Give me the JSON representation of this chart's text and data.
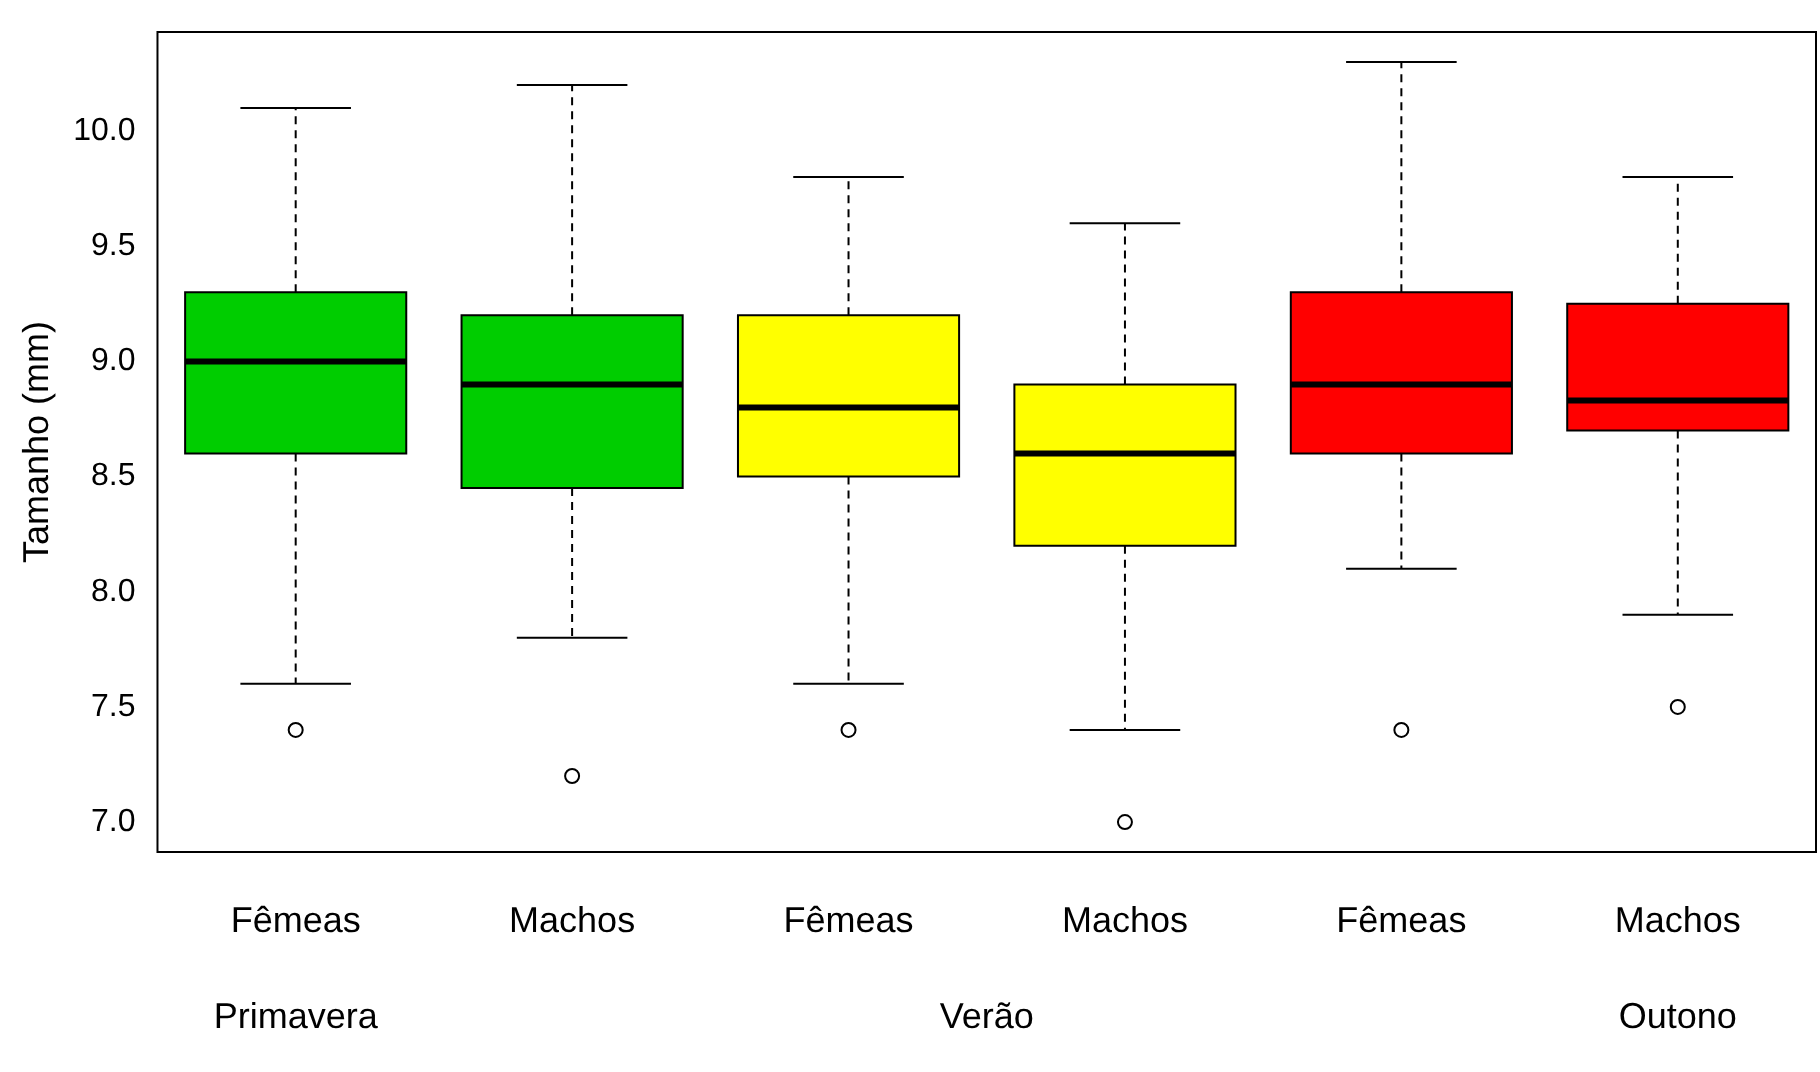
{
  "chart_data": {
    "type": "box",
    "ylabel": "Tamanho (mm)",
    "categories": [
      "Fêmeas",
      "Machos",
      "Fêmeas",
      "Machos",
      "Fêmeas",
      "Machos"
    ],
    "colors": [
      "#00cd00",
      "#00cd00",
      "#ffff00",
      "#ffff00",
      "#ff0000",
      "#ff0000"
    ],
    "boxes": [
      {
        "low": 7.6,
        "q1": 8.6,
        "median": 9.0,
        "q3": 9.3,
        "high": 10.1,
        "outliers": [
          7.4
        ]
      },
      {
        "low": 7.8,
        "q1": 8.45,
        "median": 8.9,
        "q3": 9.2,
        "high": 10.2,
        "outliers": [
          7.2
        ]
      },
      {
        "low": 7.6,
        "q1": 8.5,
        "median": 8.8,
        "q3": 9.2,
        "high": 9.8,
        "outliers": [
          7.4
        ]
      },
      {
        "low": 7.4,
        "q1": 8.2,
        "median": 8.6,
        "q3": 8.9,
        "high": 9.6,
        "outliers": [
          7.0
        ]
      },
      {
        "low": 8.1,
        "q1": 8.6,
        "median": 8.9,
        "q3": 9.3,
        "high": 10.3,
        "outliers": [
          7.4
        ]
      },
      {
        "low": 7.9,
        "q1": 8.7,
        "median": 8.83,
        "q3": 9.25,
        "high": 9.8,
        "outliers": [
          7.5
        ]
      }
    ],
    "ylim": [
      6.87,
      10.43
    ],
    "yticks": [
      {
        "value": 7,
        "label": "7.0"
      },
      {
        "value": 7.5,
        "label": "7.5"
      },
      {
        "value": 8,
        "label": "8.0"
      },
      {
        "value": 8.5,
        "label": "8.5"
      },
      {
        "value": 9,
        "label": "9.0"
      },
      {
        "value": 9.5,
        "label": "9.5"
      },
      {
        "value": 10,
        "label": "10.0"
      }
    ],
    "grid": false,
    "legend": false,
    "annotations": [
      "Primavera",
      "Verão",
      "Outono"
    ]
  }
}
